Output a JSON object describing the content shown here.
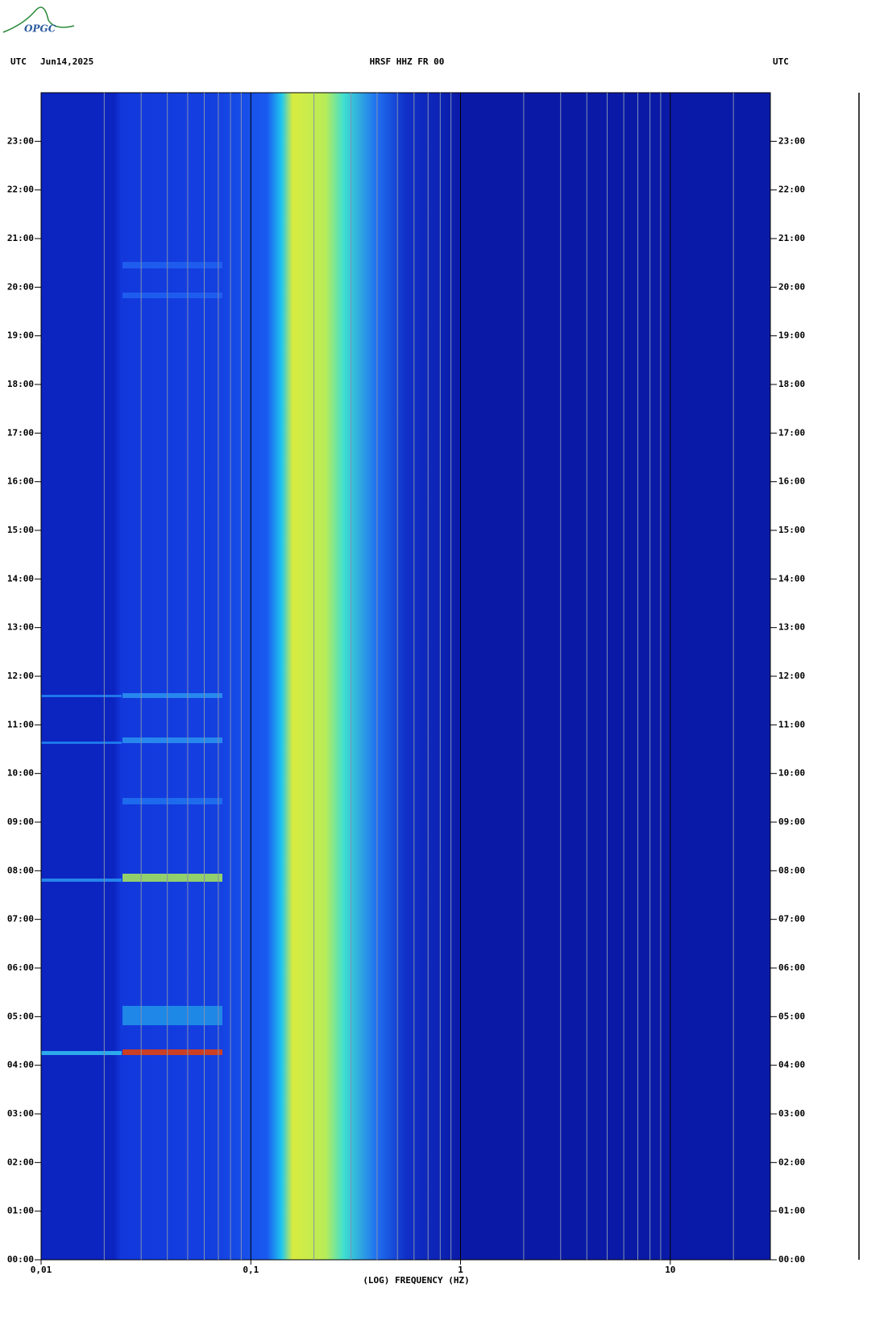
{
  "chart_data": {
    "type": "spectrogram",
    "logo": "OPGC",
    "time_zone_left": "UTC",
    "date": "Jun14,2025",
    "title": "HRSF HHZ FR 00",
    "time_zone_right": "UTC",
    "x_label": "(LOG) FREQUENCY (HZ)",
    "x_log": true,
    "xlim": [
      0.01,
      30
    ],
    "xticks": [
      {
        "value": 0.01,
        "label": "0,01"
      },
      {
        "value": 0.1,
        "label": "0,1"
      },
      1,
      10
    ],
    "xgrid": [
      0.02,
      0.03,
      0.04,
      0.05,
      0.06,
      0.07,
      0.08,
      0.09,
      0.2,
      0.3,
      0.4,
      0.5,
      0.6,
      0.7,
      0.8,
      0.9,
      2,
      3,
      4,
      5,
      6,
      7,
      8,
      9,
      20
    ],
    "ylim": [
      0,
      24
    ],
    "yticks": [
      {
        "value": 0,
        "label": "00:00"
      },
      {
        "value": 1,
        "label": "01:00"
      },
      {
        "value": 2,
        "label": "02:00"
      },
      {
        "value": 3,
        "label": "03:00"
      },
      {
        "value": 4,
        "label": "04:00"
      },
      {
        "value": 5,
        "label": "05:00"
      },
      {
        "value": 6,
        "label": "06:00"
      },
      {
        "value": 7,
        "label": "07:00"
      },
      {
        "value": 8,
        "label": "08:00"
      },
      {
        "value": 9,
        "label": "09:00"
      },
      {
        "value": 10,
        "label": "10:00"
      },
      {
        "value": 11,
        "label": "11:00"
      },
      {
        "value": 12,
        "label": "12:00"
      },
      {
        "value": 13,
        "label": "13:00"
      },
      {
        "value": 14,
        "label": "14:00"
      },
      {
        "value": 15,
        "label": "15:00"
      },
      {
        "value": 16,
        "label": "16:00"
      },
      {
        "value": 17,
        "label": "17:00"
      },
      {
        "value": 18,
        "label": "18:00"
      },
      {
        "value": 19,
        "label": "19:00"
      },
      {
        "value": 20,
        "label": "20:00"
      },
      {
        "value": 21,
        "label": "21:00"
      },
      {
        "value": 22,
        "label": "22:00"
      },
      {
        "value": 23,
        "label": "23:00"
      }
    ]
  }
}
